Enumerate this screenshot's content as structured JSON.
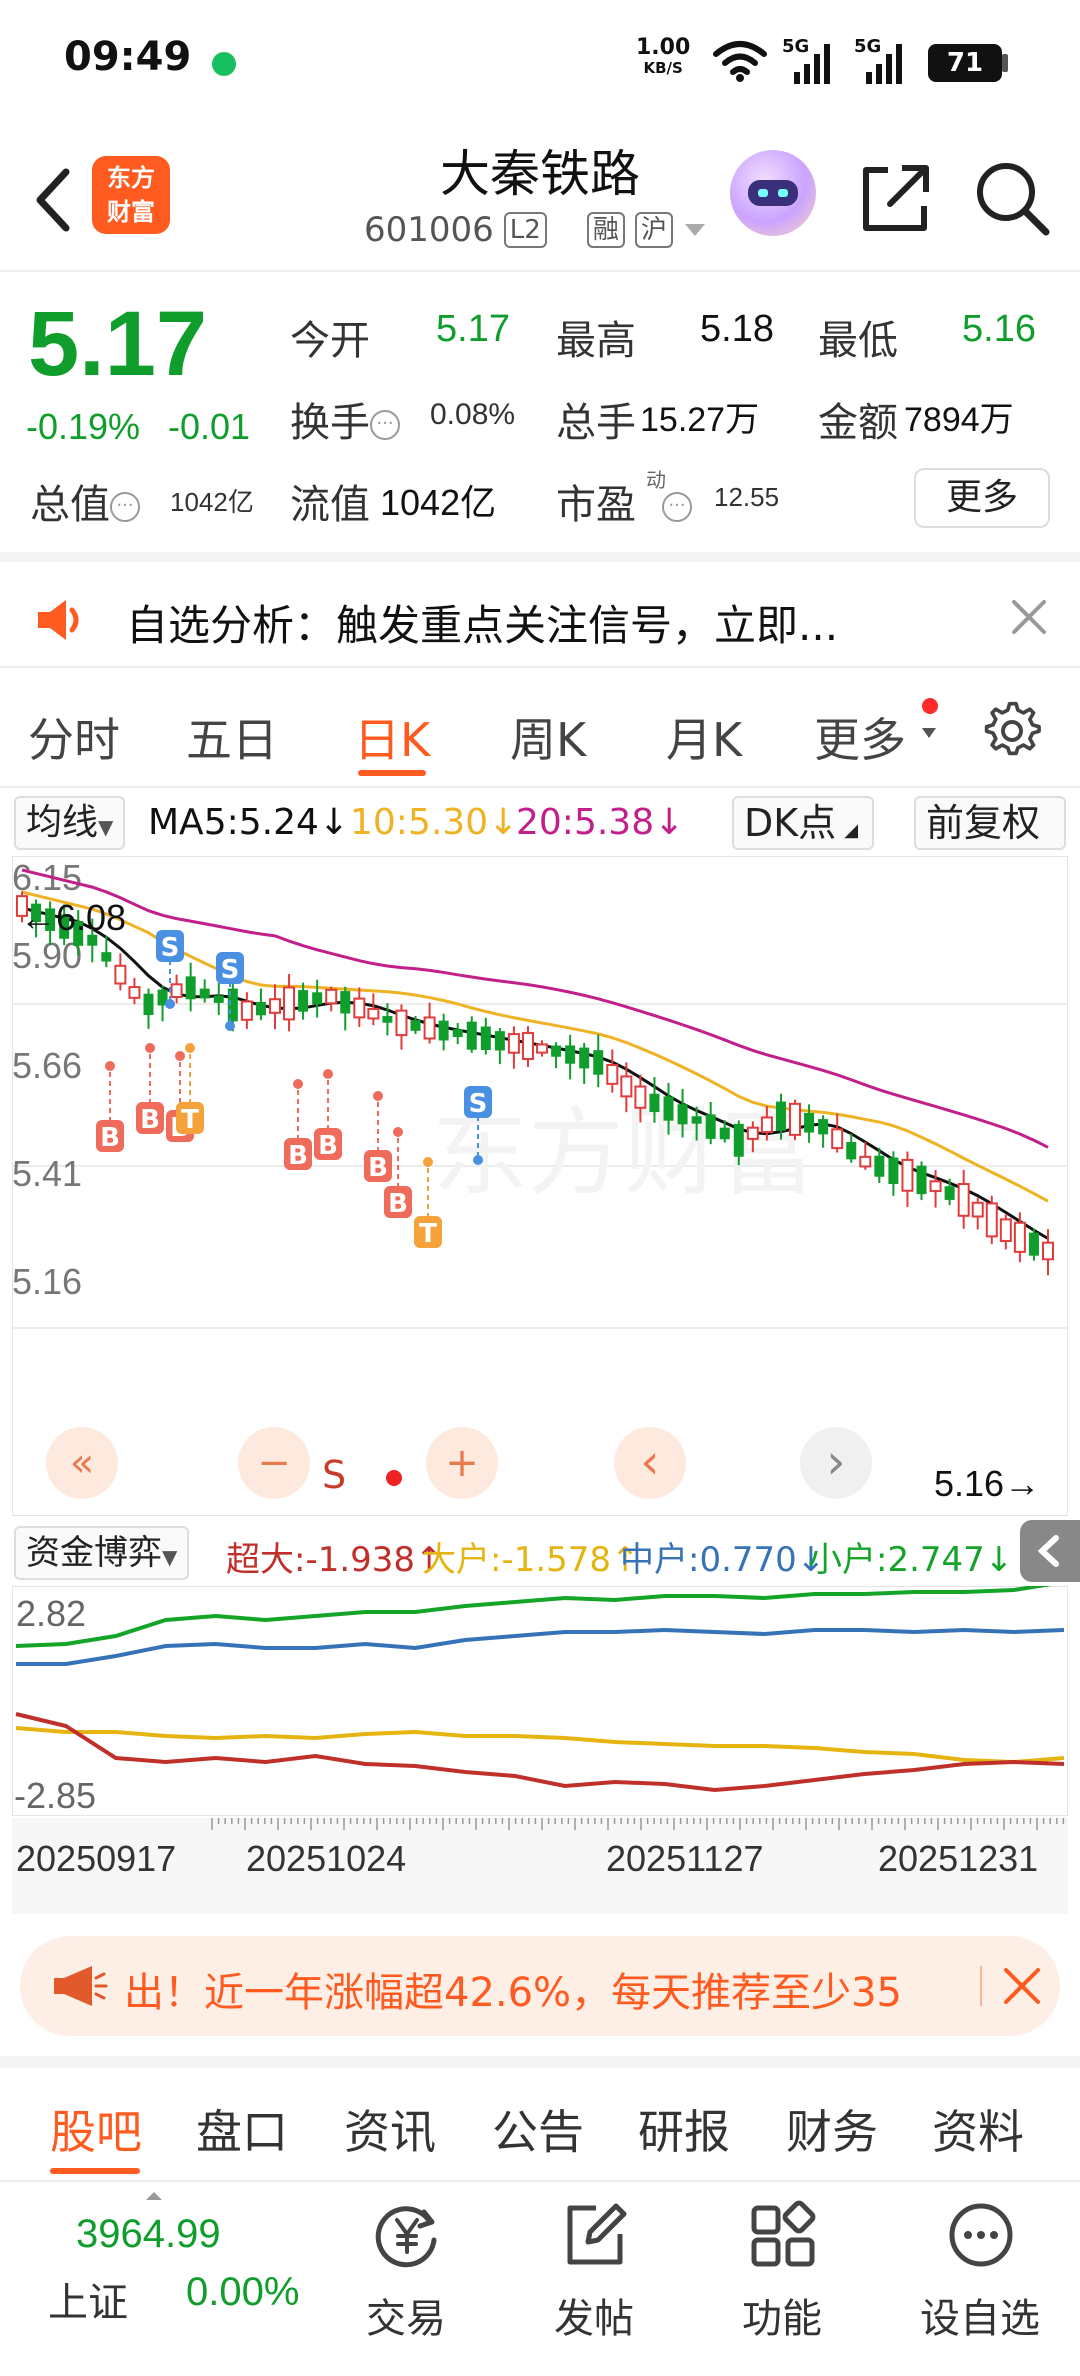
{
  "status_bar": {
    "time": "09:49",
    "net_speed": "1.00",
    "net_unit": "KB/S",
    "signal1": "5G",
    "signal2": "5G",
    "battery": "71"
  },
  "header": {
    "logo_line1": "东方",
    "logo_line2": "财富",
    "stock_name": "大秦铁路",
    "stock_code": "601006",
    "tag_l2": "L2",
    "tag_rong": "融",
    "tag_hu": "沪"
  },
  "quote": {
    "price": "5.17",
    "change_pct": "-0.19%",
    "change_amt": "-0.01",
    "open_label": "今开",
    "open_value": "5.17",
    "high_label": "最高",
    "high_value": "5.18",
    "low_label": "最低",
    "low_value": "5.16",
    "turnover_label": "换手",
    "turnover_value": "0.08%",
    "volume_label": "总手",
    "volume_value": "15.27万",
    "amount_label": "金额",
    "amount_value": "7894万",
    "mktcap_label": "总值",
    "mktcap_value": "1042亿",
    "float_label": "流值",
    "float_value": "1042亿",
    "pe_label": "市盈",
    "pe_sup": "动",
    "pe_value": "12.55",
    "more_label": "更多"
  },
  "notice": {
    "text": "自选分析：触发重点关注信号，立即..."
  },
  "periods": {
    "items": [
      "分时",
      "五日",
      "日K",
      "周K",
      "月K",
      "更多"
    ],
    "active": "日K"
  },
  "ma_row": {
    "dropdown": "均线",
    "ma5": "MA5:5.24↓",
    "ma10": "10:5.30↓",
    "ma20": "20:5.38↓",
    "dk_label": "DK点",
    "adjust_label": "前复权"
  },
  "colors": {
    "up": "#e23b3b",
    "down": "#0f9d2c",
    "ma5": "#111111",
    "ma10": "#efb225",
    "ma20": "#c21f8a",
    "accent": "#ff5a1f"
  },
  "kchart": {
    "y_ticks": [
      "6.15",
      "5.90",
      "5.66",
      "5.41",
      "5.16"
    ],
    "high_marker": "←6.08",
    "low_marker": "5.16→",
    "toolbar": {
      "rewind": "«",
      "zoom_out": "−",
      "s_label": "S",
      "zoom_in": "+",
      "prev": "‹",
      "next": "›"
    },
    "markers": [
      "S",
      "S",
      "S",
      "B",
      "B",
      "B",
      "T",
      "B",
      "B",
      "B",
      "B",
      "T"
    ]
  },
  "capital_row": {
    "dropdown": "资金博弈",
    "super": "超大:-1.938↑",
    "large": "大户:-1.578↑",
    "medium": "中户:0.770↓",
    "small": "小户:2.747↓"
  },
  "flowchart": {
    "y_top": "2.82",
    "y_bottom": "-2.85"
  },
  "dates": [
    "20250917",
    "20251024",
    "20251127",
    "20251231"
  ],
  "ad_banner": {
    "text": "出！近一年涨幅超42.6%，每天推荐至少35"
  },
  "bottom_tabs": {
    "items": [
      "股吧",
      "盘口",
      "资讯",
      "公告",
      "研报",
      "财务",
      "资料"
    ],
    "active": "股吧"
  },
  "navbar": {
    "index_value": "3964.99",
    "index_name": "上证",
    "index_pct": "0.00%",
    "trade": "交易",
    "post": "发帖",
    "features": "功能",
    "add_watch": "设自选"
  }
}
